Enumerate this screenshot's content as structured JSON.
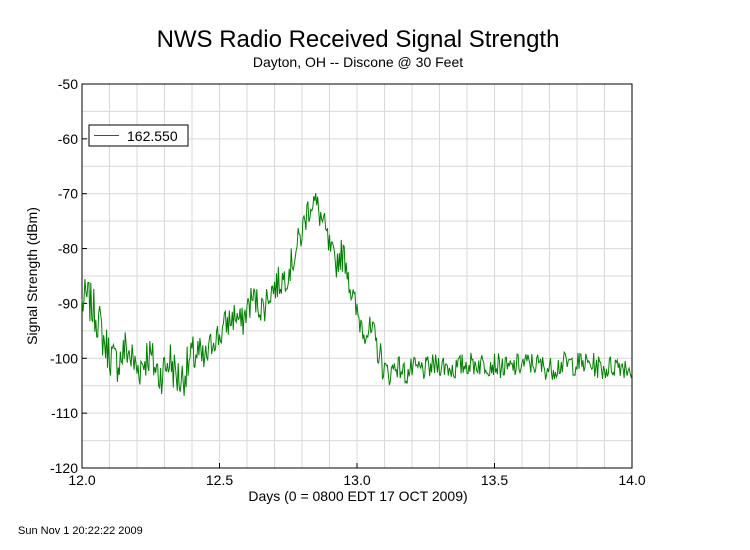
{
  "chart_data": {
    "type": "line",
    "title": "NWS Radio Received Signal Strength",
    "subtitle": "Dayton, OH -- Discone @ 30 Feet",
    "xlabel": "Days (0 = 0800 EDT 17 OCT 2009)",
    "ylabel": "Signal Strength (dBm)",
    "xlim": [
      12.0,
      14.0
    ],
    "ylim": [
      -120,
      -50
    ],
    "x_ticks": [
      "12.0",
      "12.5",
      "13.0",
      "13.5",
      "14.0"
    ],
    "y_ticks": [
      "-50",
      "-60",
      "-70",
      "-80",
      "-90",
      "-100",
      "-110",
      "-120"
    ],
    "grid": true,
    "legend_position": "top-left",
    "series": [
      {
        "name": "162.550",
        "color": "#008000",
        "x": [
          12.0,
          12.02,
          12.04,
          12.06,
          12.08,
          12.1,
          12.12,
          12.14,
          12.16,
          12.18,
          12.2,
          12.22,
          12.24,
          12.26,
          12.28,
          12.3,
          12.32,
          12.34,
          12.36,
          12.38,
          12.4,
          12.42,
          12.44,
          12.46,
          12.48,
          12.5,
          12.52,
          12.54,
          12.56,
          12.58,
          12.6,
          12.62,
          12.64,
          12.66,
          12.68,
          12.7,
          12.72,
          12.74,
          12.76,
          12.78,
          12.8,
          12.82,
          12.84,
          12.86,
          12.88,
          12.9,
          12.92,
          12.94,
          12.96,
          12.98,
          13.0,
          13.02,
          13.04,
          13.06,
          13.08,
          13.1,
          13.12,
          13.14,
          13.16,
          13.18,
          13.2,
          13.25,
          13.3,
          13.35,
          13.4,
          13.45,
          13.5,
          13.55,
          13.6,
          13.65,
          13.7,
          13.75,
          13.8,
          13.85,
          13.9,
          13.95,
          14.0
        ],
        "y": [
          -90,
          -89,
          -91,
          -93,
          -97,
          -99,
          -101,
          -100,
          -98,
          -100,
          -102,
          -101,
          -99,
          -101,
          -103,
          -102,
          -100,
          -103,
          -104,
          -102,
          -100,
          -99,
          -101,
          -99,
          -96,
          -96,
          -94,
          -93,
          -92,
          -94,
          -91,
          -89,
          -90,
          -91,
          -88,
          -87,
          -86,
          -85,
          -83,
          -80,
          -77,
          -73,
          -71,
          -73,
          -76,
          -80,
          -83,
          -81,
          -82,
          -88,
          -92,
          -94,
          -95,
          -96,
          -99,
          -102,
          -103,
          -101,
          -102,
          -103,
          -102,
          -102,
          -101,
          -102,
          -101,
          -101,
          -101,
          -102,
          -101,
          -101,
          -102,
          -101,
          -101,
          -101,
          -102,
          -101,
          -102
        ]
      }
    ]
  },
  "footer": {
    "timestamp": "Sun Nov  1 20:22:22 2009"
  }
}
